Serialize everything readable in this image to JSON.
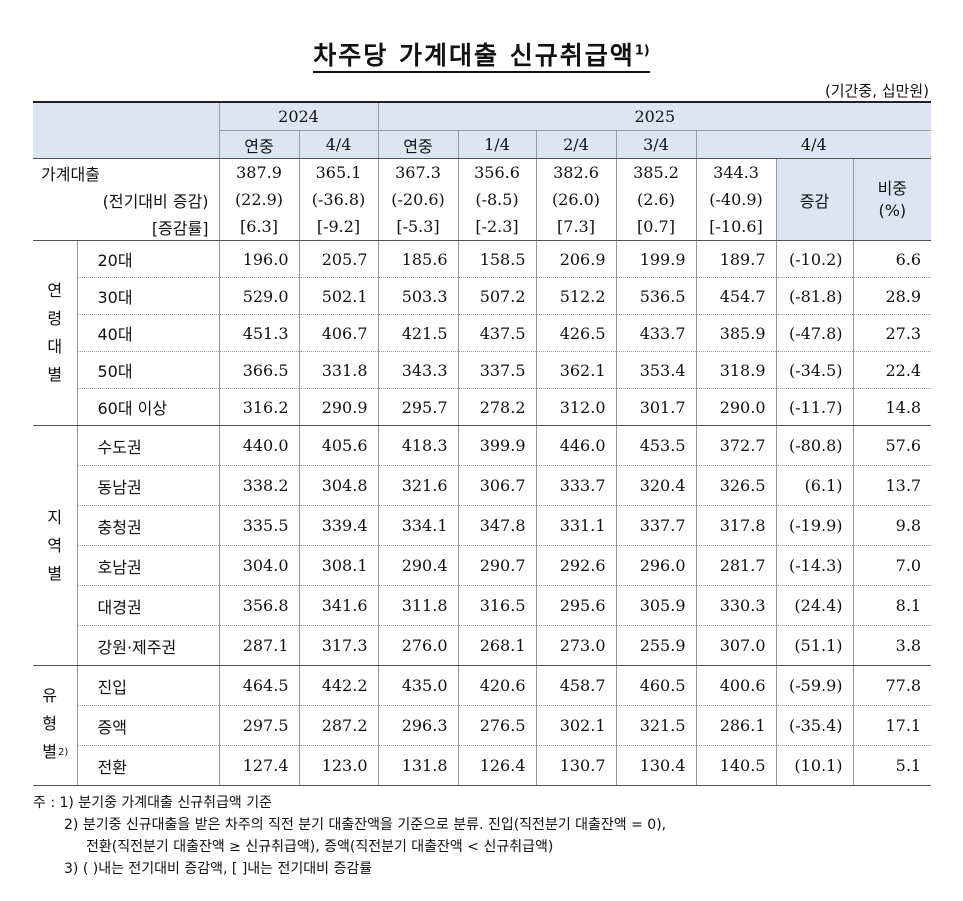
{
  "title": "차주당 가계대출 신규취급액",
  "title_sup": "1)",
  "unit": "(기간중, 십만원)",
  "header": {
    "year2024": "2024",
    "year2025": "2025",
    "y24_annual": "연중",
    "y24_q4": "4/4",
    "y25_annual": "연중",
    "y25_q1": "1/4",
    "y25_q2": "2/4",
    "y25_q3": "3/4",
    "y25_q4": "4/4",
    "change": "증감",
    "share": "비중",
    "share_unit": "(%)"
  },
  "total": {
    "label": "가계대출",
    "values": [
      "387.9",
      "365.1",
      "367.3",
      "356.6",
      "382.6",
      "385.2",
      "344.3"
    ],
    "chg_label": "(전기대비 증감)",
    "chg_values": [
      "(22.9)",
      "(-36.8)",
      "(-20.6)",
      "(-8.5)",
      "(26.0)",
      "(2.6)",
      "(-40.9)"
    ],
    "rate_label": "[증감률]",
    "rate_values": [
      "[6.3]",
      "[-9.2]",
      "[-5.3]",
      "[-2.3]",
      "[7.3]",
      "[0.7]",
      "[-10.6]"
    ]
  },
  "groups": [
    {
      "label": "연령대별",
      "rows": [
        {
          "label": "20대",
          "values": [
            "196.0",
            "205.7",
            "185.6",
            "158.5",
            "206.9",
            "199.9",
            "189.7",
            "(-10.2)",
            "6.6"
          ]
        },
        {
          "label": "30대",
          "values": [
            "529.0",
            "502.1",
            "503.3",
            "507.2",
            "512.2",
            "536.5",
            "454.7",
            "(-81.8)",
            "28.9"
          ]
        },
        {
          "label": "40대",
          "values": [
            "451.3",
            "406.7",
            "421.5",
            "437.5",
            "426.5",
            "433.7",
            "385.9",
            "(-47.8)",
            "27.3"
          ]
        },
        {
          "label": "50대",
          "values": [
            "366.5",
            "331.8",
            "343.3",
            "337.5",
            "362.1",
            "353.4",
            "318.9",
            "(-34.5)",
            "22.4"
          ]
        },
        {
          "label": "60대 이상",
          "values": [
            "316.2",
            "290.9",
            "295.7",
            "278.2",
            "312.0",
            "301.7",
            "290.0",
            "(-11.7)",
            "14.8"
          ]
        }
      ]
    },
    {
      "label": "지역별",
      "rows": [
        {
          "label": "수도권",
          "values": [
            "440.0",
            "405.6",
            "418.3",
            "399.9",
            "446.0",
            "453.5",
            "372.7",
            "(-80.8)",
            "57.6"
          ]
        },
        {
          "label": "동남권",
          "values": [
            "338.2",
            "304.8",
            "321.6",
            "306.7",
            "333.7",
            "320.4",
            "326.5",
            "(6.1)",
            "13.7"
          ]
        },
        {
          "label": "충청권",
          "values": [
            "335.5",
            "339.4",
            "334.1",
            "347.8",
            "331.1",
            "337.7",
            "317.8",
            "(-19.9)",
            "9.8"
          ]
        },
        {
          "label": "호남권",
          "values": [
            "304.0",
            "308.1",
            "290.4",
            "290.7",
            "292.6",
            "296.0",
            "281.7",
            "(-14.3)",
            "7.0"
          ]
        },
        {
          "label": "대경권",
          "values": [
            "356.8",
            "341.6",
            "311.8",
            "316.5",
            "295.6",
            "305.9",
            "330.3",
            "(24.4)",
            "8.1"
          ]
        },
        {
          "label": "강원·제주권",
          "values": [
            "287.1",
            "317.3",
            "276.0",
            "268.1",
            "273.0",
            "255.9",
            "307.0",
            "(51.1)",
            "3.8"
          ]
        }
      ]
    },
    {
      "label": "유형별",
      "sup": "2)",
      "rows": [
        {
          "label": "진입",
          "values": [
            "464.5",
            "442.2",
            "435.0",
            "420.6",
            "458.7",
            "460.5",
            "400.6",
            "(-59.9)",
            "77.8"
          ]
        },
        {
          "label": "증액",
          "values": [
            "297.5",
            "287.2",
            "296.3",
            "276.5",
            "302.1",
            "321.5",
            "286.1",
            "(-35.4)",
            "17.1"
          ]
        },
        {
          "label": "전환",
          "values": [
            "127.4",
            "123.0",
            "131.8",
            "126.4",
            "130.7",
            "130.4",
            "140.5",
            "(10.1)",
            "5.1"
          ]
        }
      ]
    }
  ],
  "notes": [
    "주 : 1)  분기중 가계대출 신규취급액 기준",
    "2)  분기중 신규대출을 받은 차주의 직전 분기 대출잔액을 기준으로 분류. 진입(직전분기 대출잔액 = 0),",
    "전환(직전분기 대출잔액 ≥ 신규취급액), 증액(직전분기 대출잔액 < 신규취급액)",
    "3)  ( )내는 전기대비 증감액, [ ]내는 전기대비 증감률"
  ]
}
